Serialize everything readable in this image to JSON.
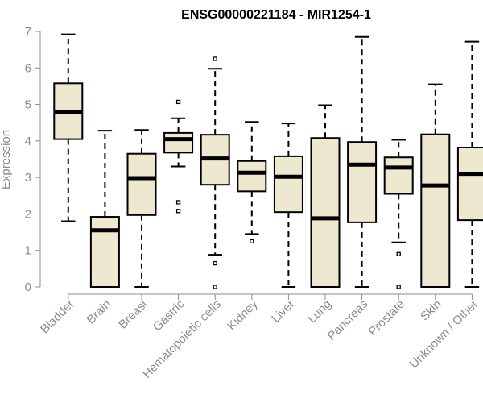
{
  "chart_data": {
    "type": "boxplot",
    "title": "ENSG00000221184 - MIR1254-1",
    "xlabel": "",
    "ylabel": "Expression",
    "ylim": [
      0,
      7
    ],
    "yticks": [
      0,
      1,
      2,
      3,
      4,
      5,
      6,
      7
    ],
    "grid": false,
    "colors": {
      "box_fill": "#efe8d0",
      "stroke": "#000000",
      "axis": "#8c8c8c"
    },
    "categories": [
      "Bladder",
      "Brain",
      "Breast",
      "Gastric",
      "Hematopoietic cells",
      "Kidney",
      "Liver",
      "Lung",
      "Pancreas",
      "Prostate",
      "Skin",
      "Unknown / Other"
    ],
    "boxes": [
      {
        "name": "Bladder",
        "whisker_low": 1.8,
        "q1": 4.05,
        "median": 4.8,
        "q3": 5.58,
        "whisker_high": 6.92,
        "outliers": []
      },
      {
        "name": "Brain",
        "whisker_low": 0.0,
        "q1": 0.0,
        "median": 1.55,
        "q3": 1.92,
        "whisker_high": 4.28,
        "outliers": []
      },
      {
        "name": "Breast",
        "whisker_low": 0.0,
        "q1": 1.97,
        "median": 2.98,
        "q3": 3.65,
        "whisker_high": 4.3,
        "outliers": []
      },
      {
        "name": "Gastric",
        "whisker_low": 3.3,
        "q1": 3.68,
        "median": 4.05,
        "q3": 4.22,
        "whisker_high": 4.62,
        "outliers": [
          5.07,
          2.32,
          2.08
        ]
      },
      {
        "name": "Hematopoietic cells",
        "whisker_low": 0.88,
        "q1": 2.8,
        "median": 3.52,
        "q3": 4.17,
        "whisker_high": 5.98,
        "outliers": [
          6.25,
          0.65,
          0.0
        ]
      },
      {
        "name": "Kidney",
        "whisker_low": 1.45,
        "q1": 2.62,
        "median": 3.13,
        "q3": 3.45,
        "whisker_high": 4.52,
        "outliers": [
          1.25
        ]
      },
      {
        "name": "Liver",
        "whisker_low": 0.0,
        "q1": 2.05,
        "median": 3.02,
        "q3": 3.58,
        "whisker_high": 4.48,
        "outliers": []
      },
      {
        "name": "Lung",
        "whisker_low": 0.0,
        "q1": 0.0,
        "median": 1.88,
        "q3": 4.08,
        "whisker_high": 4.98,
        "outliers": []
      },
      {
        "name": "Pancreas",
        "whisker_low": 0.0,
        "q1": 1.77,
        "median": 3.35,
        "q3": 3.97,
        "whisker_high": 6.85,
        "outliers": []
      },
      {
        "name": "Prostate",
        "whisker_low": 1.22,
        "q1": 2.55,
        "median": 3.27,
        "q3": 3.55,
        "whisker_high": 4.03,
        "outliers": [
          0.9,
          0.0
        ]
      },
      {
        "name": "Skin",
        "whisker_low": 0.0,
        "q1": 0.0,
        "median": 2.78,
        "q3": 4.18,
        "whisker_high": 5.55,
        "outliers": []
      },
      {
        "name": "Unknown / Other",
        "whisker_low": 0.0,
        "q1": 1.83,
        "median": 3.1,
        "q3": 3.82,
        "whisker_high": 6.72,
        "outliers": []
      }
    ]
  }
}
